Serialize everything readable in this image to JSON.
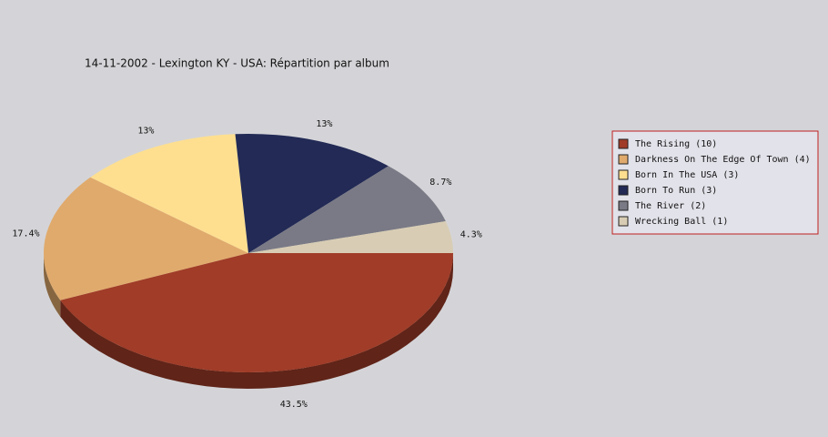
{
  "chart_data": {
    "type": "pie",
    "title": "14-11-2002 - Lexington KY - USA:  Répartition par album",
    "categories": [
      "The Rising (10)",
      "Darkness On The Edge Of Town (4)",
      "Born In The USA (3)",
      "Born To Run (3)",
      "The River (2)",
      "Wrecking Ball (1)"
    ],
    "values": [
      43.5,
      17.4,
      13,
      13,
      8.7,
      4.3
    ],
    "value_labels": [
      "43.5%",
      "17.4%",
      "13%",
      "13%",
      "8.7%",
      "4.3%"
    ],
    "colors": [
      "#a03c28",
      "#e0aa6c",
      "#fedf90",
      "#222a55",
      "#7a7a86",
      "#d8cdb4"
    ],
    "legend": "right"
  }
}
